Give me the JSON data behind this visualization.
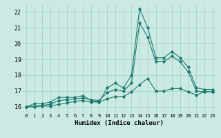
{
  "title": "",
  "xlabel": "Humidex (Indice chaleur)",
  "ylabel": "",
  "bg_color": "#cceae4",
  "grid_color": "#aed4cc",
  "line_color": "#1a7a6e",
  "ylim": [
    15.6,
    22.4
  ],
  "xlim": [
    -0.5,
    23.5
  ],
  "yticks": [
    16,
    17,
    18,
    19,
    20,
    21,
    22
  ],
  "xticks": [
    0,
    1,
    2,
    3,
    4,
    5,
    6,
    7,
    8,
    9,
    10,
    11,
    12,
    13,
    14,
    15,
    16,
    17,
    18,
    19,
    20,
    21,
    22,
    23
  ],
  "line1_y": [
    16.0,
    16.2,
    16.2,
    16.3,
    16.6,
    16.6,
    16.6,
    16.7,
    16.4,
    16.3,
    17.2,
    17.5,
    17.2,
    18.0,
    22.2,
    21.0,
    19.1,
    19.1,
    19.5,
    19.1,
    18.5,
    17.2,
    17.1,
    17.1
  ],
  "line2_y": [
    16.0,
    16.05,
    16.1,
    16.15,
    16.4,
    16.45,
    16.5,
    16.55,
    16.45,
    16.4,
    16.9,
    17.1,
    17.0,
    17.5,
    21.3,
    20.4,
    18.85,
    18.85,
    19.2,
    18.85,
    18.2,
    17.0,
    16.95,
    16.95
  ],
  "line3_y": [
    16.0,
    16.0,
    16.05,
    16.05,
    16.15,
    16.25,
    16.35,
    16.4,
    16.3,
    16.3,
    16.5,
    16.65,
    16.65,
    16.95,
    17.4,
    17.8,
    17.0,
    17.0,
    17.15,
    17.15,
    16.95,
    16.75,
    16.95,
    16.95
  ]
}
